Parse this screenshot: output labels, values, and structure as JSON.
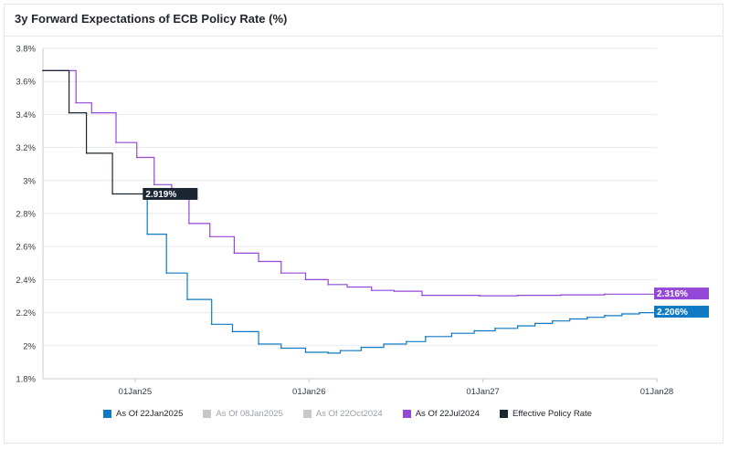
{
  "title": "3y Forward Expectations of ECB Policy Rate (%)",
  "colors": {
    "jan22": "#0f7ac3",
    "jan08": "#c8c8c8",
    "oct22": "#c8c8c8",
    "jul22": "#9547d8",
    "effective": "#1b2633",
    "grid": "#e6e8eb",
    "axis": "#c7ccd1"
  },
  "legend": [
    {
      "label": "As Of 22Jan2025",
      "color": "#0f7ac3",
      "active": true
    },
    {
      "label": "As Of 08Jan2025",
      "color": "#c8c8c8",
      "active": false
    },
    {
      "label": "As Of 22Oct2024",
      "color": "#c8c8c8",
      "active": false
    },
    {
      "label": "As Of 22Jul2024",
      "color": "#9547d8",
      "active": true
    },
    {
      "label": "Effective Policy Rate",
      "color": "#1b2633",
      "active": true
    }
  ],
  "chart_data": {
    "type": "line",
    "title": "3y Forward Expectations of ECB Policy Rate (%)",
    "xlabel": "",
    "ylabel": "",
    "xlim": [
      2024.47,
      2028.0
    ],
    "ylim": [
      1.8,
      3.8
    ],
    "y_ticks": [
      {
        "value": 1.8,
        "label": "1.8%"
      },
      {
        "value": 2.0,
        "label": "2%"
      },
      {
        "value": 2.2,
        "label": "2.2%"
      },
      {
        "value": 2.4,
        "label": "2.4%"
      },
      {
        "value": 2.6,
        "label": "2.6%"
      },
      {
        "value": 2.8,
        "label": "2.8%"
      },
      {
        "value": 3.0,
        "label": "3%"
      },
      {
        "value": 3.2,
        "label": "3.2%"
      },
      {
        "value": 3.4,
        "label": "3.4%"
      },
      {
        "value": 3.6,
        "label": "3.6%"
      },
      {
        "value": 3.8,
        "label": "3.8%"
      }
    ],
    "x_ticks": [
      {
        "value": 2025.0,
        "label": "01Jan25"
      },
      {
        "value": 2026.0,
        "label": "01Jan26"
      },
      {
        "value": 2027.0,
        "label": "01Jan27"
      },
      {
        "value": 2028.0,
        "label": "01Jan28"
      }
    ],
    "grid": "horizontal",
    "series": [
      {
        "name": "As Of 22Jul2024",
        "color": "#9547d8",
        "step": true,
        "end_label": "2.316%",
        "points": [
          [
            2024.47,
            3.665
          ],
          [
            2024.66,
            3.47
          ],
          [
            2024.75,
            3.41
          ],
          [
            2024.89,
            3.23
          ],
          [
            2025.01,
            3.14
          ],
          [
            2025.11,
            2.975
          ],
          [
            2025.21,
            2.91
          ],
          [
            2025.31,
            2.74
          ],
          [
            2025.43,
            2.66
          ],
          [
            2025.57,
            2.56
          ],
          [
            2025.71,
            2.51
          ],
          [
            2025.84,
            2.44
          ],
          [
            2025.98,
            2.4
          ],
          [
            2026.11,
            2.37
          ],
          [
            2026.22,
            2.355
          ],
          [
            2026.36,
            2.335
          ],
          [
            2026.49,
            2.33
          ],
          [
            2026.65,
            2.305
          ],
          [
            2026.98,
            2.302
          ],
          [
            2027.2,
            2.305
          ],
          [
            2027.45,
            2.308
          ],
          [
            2027.7,
            2.312
          ],
          [
            2028.0,
            2.316
          ]
        ]
      },
      {
        "name": "As Of 22Jan2025",
        "color": "#0f7ac3",
        "step": true,
        "end_label": "2.206%",
        "points": [
          [
            2025.06,
            2.919
          ],
          [
            2025.07,
            2.675
          ],
          [
            2025.18,
            2.44
          ],
          [
            2025.3,
            2.28
          ],
          [
            2025.44,
            2.13
          ],
          [
            2025.56,
            2.085
          ],
          [
            2025.71,
            2.01
          ],
          [
            2025.84,
            1.985
          ],
          [
            2025.98,
            1.96
          ],
          [
            2026.11,
            1.955
          ],
          [
            2026.18,
            1.97
          ],
          [
            2026.3,
            1.99
          ],
          [
            2026.43,
            2.01
          ],
          [
            2026.56,
            2.025
          ],
          [
            2026.67,
            2.055
          ],
          [
            2026.82,
            2.075
          ],
          [
            2026.95,
            2.09
          ],
          [
            2027.07,
            2.105
          ],
          [
            2027.2,
            2.12
          ],
          [
            2027.3,
            2.135
          ],
          [
            2027.4,
            2.15
          ],
          [
            2027.5,
            2.162
          ],
          [
            2027.6,
            2.172
          ],
          [
            2027.7,
            2.182
          ],
          [
            2027.8,
            2.192
          ],
          [
            2027.9,
            2.2
          ],
          [
            2028.0,
            2.206
          ]
        ]
      },
      {
        "name": "Effective Policy Rate",
        "color": "#1b2633",
        "step": true,
        "end_label": "2.919%",
        "points": [
          [
            2024.47,
            3.665
          ],
          [
            2024.62,
            3.41
          ],
          [
            2024.72,
            3.165
          ],
          [
            2024.87,
            2.919
          ],
          [
            2025.06,
            2.919
          ]
        ]
      }
    ]
  }
}
